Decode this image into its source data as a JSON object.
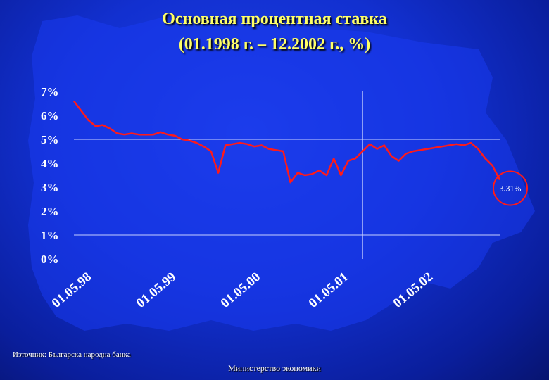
{
  "title": {
    "line1": "Основная процентная ставка",
    "line2": "(01.1998 г. – 12.2002 г., %)"
  },
  "chart_data": {
    "type": "line",
    "y_ticks": [
      "7%",
      "6%",
      "5%",
      "4%",
      "3%",
      "2%",
      "1%",
      "0%"
    ],
    "ylim": [
      0,
      7
    ],
    "x_ticks": [
      "01.05.98",
      "01.05.99",
      "01.05.00",
      "01.05.01",
      "01.05.02"
    ],
    "gridlines": {
      "horizontal_at": [
        5,
        1
      ],
      "vertical_at": "01.05.01"
    },
    "series": [
      {
        "color": "#ff1a1a",
        "points": [
          [
            "1998-01",
            6.6
          ],
          [
            "1998-02",
            6.2
          ],
          [
            "1998-03",
            5.8
          ],
          [
            "1998-04",
            5.55
          ],
          [
            "1998-05",
            5.6
          ],
          [
            "1998-06",
            5.45
          ],
          [
            "1998-07",
            5.25
          ],
          [
            "1998-08",
            5.2
          ],
          [
            "1998-09",
            5.25
          ],
          [
            "1998-10",
            5.2
          ],
          [
            "1998-11",
            5.2
          ],
          [
            "1998-12",
            5.2
          ],
          [
            "1999-01",
            5.3
          ],
          [
            "1999-02",
            5.2
          ],
          [
            "1999-03",
            5.15
          ],
          [
            "1999-04",
            5.0
          ],
          [
            "1999-05",
            4.95
          ],
          [
            "1999-06",
            4.85
          ],
          [
            "1999-07",
            4.7
          ],
          [
            "1999-08",
            4.5
          ],
          [
            "1999-09",
            3.6
          ],
          [
            "1999-10",
            4.75
          ],
          [
            "1999-11",
            4.8
          ],
          [
            "1999-12",
            4.85
          ],
          [
            "2000-01",
            4.8
          ],
          [
            "2000-02",
            4.7
          ],
          [
            "2000-03",
            4.75
          ],
          [
            "2000-04",
            4.6
          ],
          [
            "2000-05",
            4.55
          ],
          [
            "2000-06",
            4.5
          ],
          [
            "2000-07",
            3.2
          ],
          [
            "2000-08",
            3.6
          ],
          [
            "2000-09",
            3.5
          ],
          [
            "2000-10",
            3.55
          ],
          [
            "2000-11",
            3.7
          ],
          [
            "2000-12",
            3.5
          ],
          [
            "2001-01",
            4.2
          ],
          [
            "2001-02",
            3.5
          ],
          [
            "2001-03",
            4.1
          ],
          [
            "2001-04",
            4.2
          ],
          [
            "2001-05",
            4.5
          ],
          [
            "2001-06",
            4.8
          ],
          [
            "2001-07",
            4.6
          ],
          [
            "2001-08",
            4.75
          ],
          [
            "2001-09",
            4.3
          ],
          [
            "2001-10",
            4.1
          ],
          [
            "2001-11",
            4.4
          ],
          [
            "2001-12",
            4.5
          ],
          [
            "2002-01",
            4.55
          ],
          [
            "2002-02",
            4.6
          ],
          [
            "2002-03",
            4.65
          ],
          [
            "2002-04",
            4.7
          ],
          [
            "2002-05",
            4.75
          ],
          [
            "2002-06",
            4.8
          ],
          [
            "2002-07",
            4.75
          ],
          [
            "2002-08",
            4.85
          ],
          [
            "2002-09",
            4.6
          ],
          [
            "2002-10",
            4.2
          ],
          [
            "2002-11",
            3.9
          ],
          [
            "2002-12",
            3.31
          ]
        ]
      }
    ],
    "end_annotation": "3.31%",
    "annotation_color": "#ff1a1a"
  },
  "footer": {
    "source": "Източник: Българска народна банка",
    "ministry": "Министерство экономики"
  }
}
